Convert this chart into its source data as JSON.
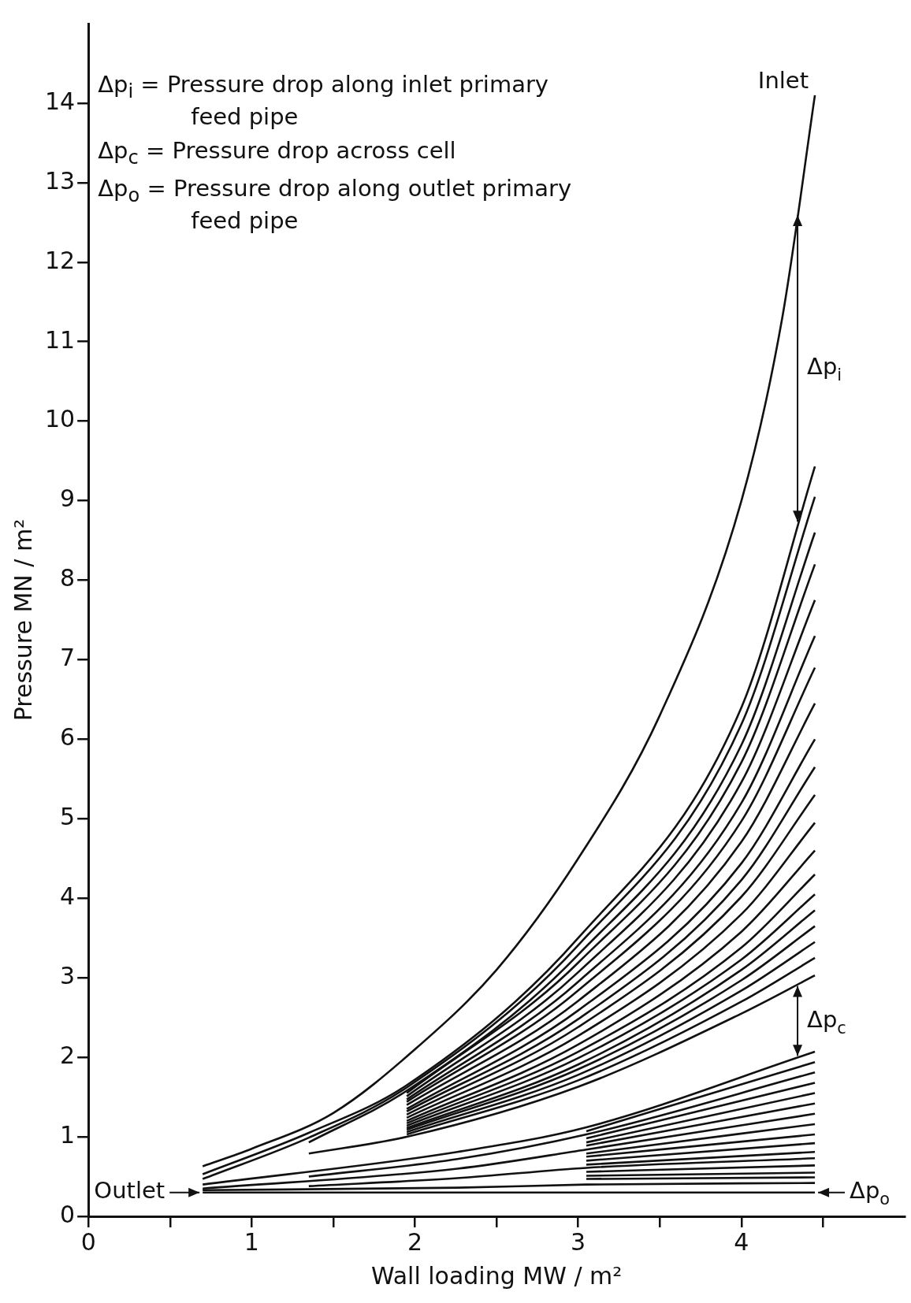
{
  "chart_data": {
    "type": "line",
    "xlabel": "Wall loading MW / m²",
    "ylabel": "Pressure MN / m²",
    "xlim": [
      0,
      5
    ],
    "ylim": [
      0,
      15
    ],
    "xticks": [
      0,
      {
        "value": 0.5,
        "label": null
      },
      1,
      {
        "value": 1.5,
        "label": null
      },
      2,
      {
        "value": 2.5,
        "label": null
      },
      3,
      {
        "value": 3.5,
        "label": null
      },
      4,
      {
        "value": 4.5,
        "label": null
      }
    ],
    "yticks": [
      0,
      1,
      2,
      3,
      4,
      5,
      6,
      7,
      8,
      9,
      10,
      11,
      12,
      13,
      14
    ],
    "marker": "none",
    "annotations": [
      "Δp$_{i}$ = Pressure drop along inlet primary feed pipe",
      "Δp$_{c}$ = Pressure drop across cell",
      "Δp$_{o}$ = Pressure drop along outlet primary feed pipe",
      "Inlet",
      "Δp$_{i}$",
      "Δp$_{c}$",
      "Outlet",
      "Δp$_{o}$"
    ],
    "series": [
      {
        "color": "#111111",
        "x": [
          0.7,
          1,
          1.5,
          2,
          2.5,
          3,
          3.5,
          4,
          4.25,
          4.45
        ],
        "values": [
          0.63,
          0.85,
          1.3,
          2.1,
          3.1,
          4.5,
          6.3,
          9.0,
          11.3,
          14.1
        ]
      },
      {
        "color": "#111111",
        "x": [
          0.7,
          1.35,
          1.95,
          3,
          4,
          4.45
        ],
        "values": [
          0.53,
          1.05,
          1.65,
          3.5,
          6.4,
          9.43
        ]
      },
      {
        "color": "#111111",
        "x": [
          0.7,
          1.35,
          1.95,
          3,
          4,
          4.45
        ],
        "values": [
          0.47,
          0.99,
          1.62,
          3.41,
          6.19,
          9.05
        ]
      },
      {
        "color": "#111111",
        "x": [
          1.35,
          1.95,
          3,
          4,
          4.45
        ],
        "values": [
          0.93,
          1.58,
          3.29,
          5.93,
          8.6
        ]
      },
      {
        "color": "#111111",
        "x": [
          1.95,
          3,
          4,
          4.45
        ],
        "values": [
          1.55,
          3.19,
          5.71,
          8.2
        ]
      },
      {
        "color": "#111111",
        "x": [
          1.95,
          3,
          4,
          4.45
        ],
        "values": [
          1.51,
          3.07,
          5.46,
          7.75
        ]
      },
      {
        "color": "#111111",
        "x": [
          1.95,
          3,
          4,
          4.45
        ],
        "values": [
          1.47,
          2.95,
          5.2,
          7.3
        ]
      },
      {
        "color": "#111111",
        "x": [
          1.95,
          3,
          4,
          4.45
        ],
        "values": [
          1.44,
          2.84,
          4.97,
          6.9
        ]
      },
      {
        "color": "#111111",
        "x": [
          1.95,
          3,
          4,
          4.45
        ],
        "values": [
          1.4,
          2.71,
          4.71,
          6.45
        ]
      },
      {
        "color": "#111111",
        "x": [
          1.95,
          3,
          4,
          4.45
        ],
        "values": [
          1.35,
          2.59,
          4.44,
          6.0
        ]
      },
      {
        "color": "#111111",
        "x": [
          1.95,
          3,
          4,
          4.45
        ],
        "values": [
          1.32,
          2.48,
          4.23,
          5.65
        ]
      },
      {
        "color": "#111111",
        "x": [
          1.95,
          3,
          4,
          4.45
        ],
        "values": [
          1.28,
          2.38,
          4.02,
          5.3
        ]
      },
      {
        "color": "#111111",
        "x": [
          1.95,
          3,
          4,
          4.45
        ],
        "values": [
          1.24,
          2.27,
          3.8,
          4.95
        ]
      },
      {
        "color": "#111111",
        "x": [
          1.95,
          3,
          4,
          4.45
        ],
        "values": [
          1.2,
          2.16,
          3.58,
          4.6
        ]
      },
      {
        "color": "#111111",
        "x": [
          1.95,
          3,
          4,
          4.45
        ],
        "values": [
          1.17,
          2.07,
          3.38,
          4.3
        ]
      },
      {
        "color": "#111111",
        "x": [
          1.95,
          3,
          4,
          4.45
        ],
        "values": [
          1.14,
          1.99,
          3.23,
          4.05
        ]
      },
      {
        "color": "#111111",
        "x": [
          1.95,
          3,
          4,
          4.45
        ],
        "values": [
          1.11,
          1.91,
          3.1,
          3.85
        ]
      },
      {
        "color": "#111111",
        "x": [
          1.95,
          3,
          4,
          4.45
        ],
        "values": [
          1.09,
          1.85,
          2.97,
          3.65
        ]
      },
      {
        "color": "#111111",
        "x": [
          1.95,
          3,
          4,
          4.45
        ],
        "values": [
          1.06,
          1.78,
          2.84,
          3.45
        ]
      },
      {
        "color": "#111111",
        "x": [
          1.95,
          3,
          4,
          4.45
        ],
        "values": [
          1.03,
          1.71,
          2.7,
          3.25
        ]
      },
      {
        "color": "#111111",
        "x": [
          1.35,
          1.95,
          3,
          4,
          4.45
        ],
        "values": [
          0.79,
          1.0,
          1.63,
          2.55,
          3.03
        ]
      },
      {
        "color": "#111111",
        "x": [
          0.7,
          2.26,
          3.05,
          4.45
        ],
        "values": [
          0.4,
          0.81,
          1.12,
          2.07
        ]
      },
      {
        "color": "#111111",
        "x": [
          3.05,
          4.45
        ],
        "values": [
          1.07,
          1.94
        ]
      },
      {
        "color": "#111111",
        "x": [
          1.35,
          2.26,
          3.05,
          4.45
        ],
        "values": [
          0.5,
          0.72,
          1.03,
          1.81
        ]
      },
      {
        "color": "#111111",
        "x": [
          3.05,
          4.45
        ],
        "values": [
          0.98,
          1.68
        ]
      },
      {
        "color": "#111111",
        "x": [
          3.05,
          4.45
        ],
        "values": [
          0.93,
          1.55
        ]
      },
      {
        "color": "#111111",
        "x": [
          3.05,
          4.45
        ],
        "values": [
          0.89,
          1.42
        ]
      },
      {
        "color": "#111111",
        "x": [
          0.7,
          2.26,
          3.05,
          4.45
        ],
        "values": [
          0.35,
          0.6,
          0.84,
          1.29
        ]
      },
      {
        "color": "#111111",
        "x": [
          3.05,
          4.45
        ],
        "values": [
          0.79,
          1.16
        ]
      },
      {
        "color": "#111111",
        "x": [
          3.05,
          4.45
        ],
        "values": [
          0.75,
          1.03
        ]
      },
      {
        "color": "#111111",
        "x": [
          3.05,
          4.45
        ],
        "values": [
          0.7,
          0.92
        ]
      },
      {
        "color": "#111111",
        "x": [
          3.05,
          4.45
        ],
        "values": [
          0.65,
          0.81
        ]
      },
      {
        "color": "#111111",
        "x": [
          1.35,
          2.26,
          3.05,
          4.45
        ],
        "values": [
          0.38,
          0.48,
          0.61,
          0.73
        ]
      },
      {
        "color": "#111111",
        "x": [
          3.05,
          4.45
        ],
        "values": [
          0.56,
          0.64
        ]
      },
      {
        "color": "#111111",
        "x": [
          3.05,
          4.45
        ],
        "values": [
          0.51,
          0.55
        ]
      },
      {
        "color": "#111111",
        "x": [
          3.05,
          4.45
        ],
        "values": [
          0.47,
          0.49
        ]
      },
      {
        "color": "#111111",
        "x": [
          0.7,
          2.26,
          3.05,
          4.45
        ],
        "values": [
          0.33,
          0.36,
          0.4,
          0.42
        ]
      },
      {
        "color": "#111111",
        "x": [
          0.7,
          4.45
        ],
        "values": [
          0.3,
          0.3
        ]
      }
    ]
  }
}
